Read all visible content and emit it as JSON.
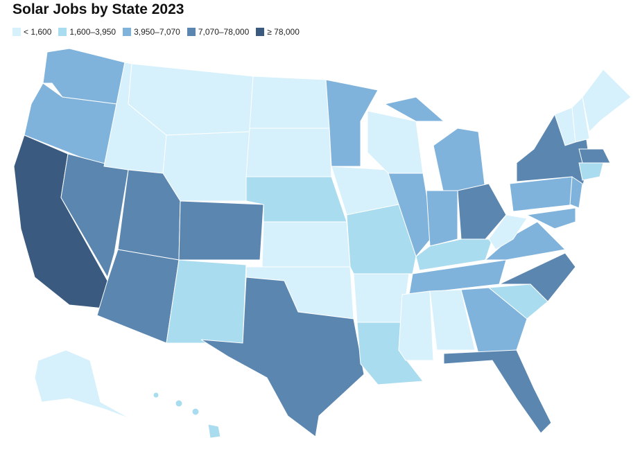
{
  "title": "Solar Jobs by State 2023",
  "legend": [
    {
      "label": "< 1,600",
      "color": "#d6f1fb"
    },
    {
      "label": "1,600–3,950",
      "color": "#a9dcef"
    },
    {
      "label": "3,950–7,070",
      "color": "#80b3dc"
    },
    {
      "label": "7,070–78,000",
      "color": "#5a86b0"
    },
    {
      "label": "≥ 78,000",
      "color": "#3a5a80"
    }
  ]
}
